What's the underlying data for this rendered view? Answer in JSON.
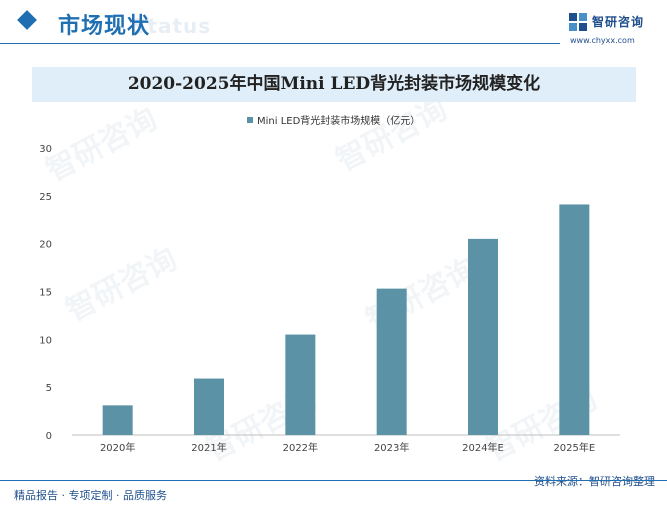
{
  "header": {
    "title": "市场现状",
    "ghost_text": "Status",
    "logo_name": "智研咨询",
    "logo_url": "www.chyxx.com"
  },
  "watermark_text": "智研咨询",
  "footer": {
    "left": "精品报告 · 专项定制 · 品质服务",
    "right": "资料来源：智研咨询整理"
  },
  "colors": {
    "bar": "#5b92a6",
    "accent": "#1f6fb2",
    "band": "#dfeef9"
  },
  "chart_data": {
    "type": "bar",
    "title": "2020-2025年中国Mini LED背光封装市场规模变化",
    "categories": [
      "2020年",
      "2021年",
      "2022年",
      "2023年",
      "2024年E",
      "2025年E"
    ],
    "series": [
      {
        "name": "Mini LED背光封装市场规模（亿元）",
        "values": [
          3.1,
          5.9,
          10.5,
          15.3,
          20.5,
          24.1
        ]
      }
    ],
    "ylim": [
      0,
      30
    ],
    "yticks": [
      0,
      5,
      10,
      15,
      20,
      25,
      30
    ],
    "grid": false,
    "legend_position": "top-center"
  }
}
